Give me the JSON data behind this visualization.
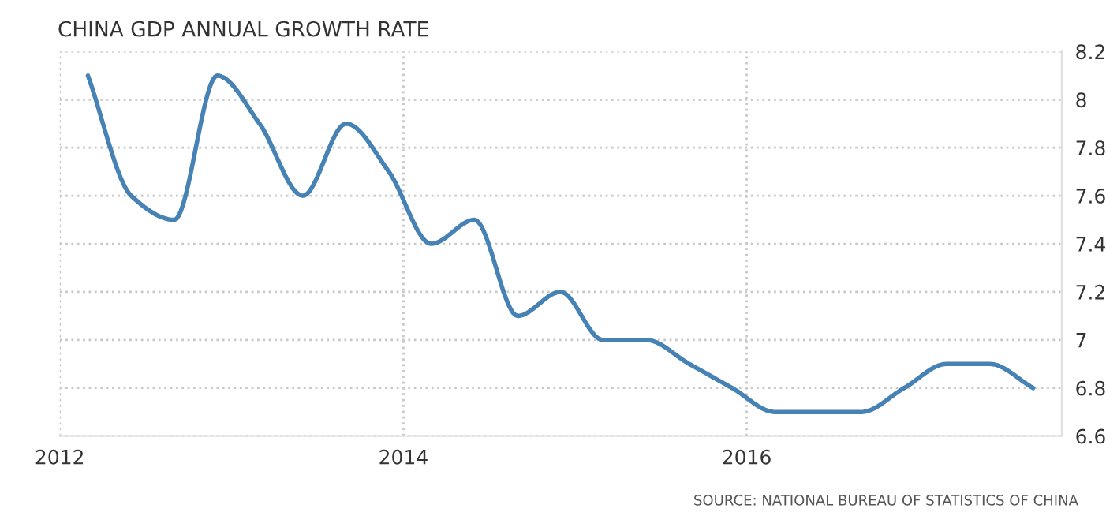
{
  "chart_data": {
    "type": "line",
    "title": "CHINA GDP ANNUAL GROWTH RATE",
    "x": [
      "2012-03",
      "2012-06",
      "2012-09",
      "2012-12",
      "2013-03",
      "2013-06",
      "2013-09",
      "2013-12",
      "2014-03",
      "2014-06",
      "2014-09",
      "2014-12",
      "2015-03",
      "2015-06",
      "2015-09",
      "2015-12",
      "2016-03",
      "2016-06",
      "2016-09",
      "2016-12",
      "2017-03",
      "2017-06",
      "2017-09"
    ],
    "series": [
      {
        "color": "#4682b4",
        "values": [
          8.1,
          7.6,
          7.5,
          8.1,
          7.9,
          7.6,
          7.9,
          7.7,
          7.4,
          7.5,
          7.1,
          7.2,
          7.0,
          7.0,
          6.9,
          6.8,
          6.7,
          6.7,
          6.7,
          6.8,
          6.9,
          6.9,
          6.8
        ]
      }
    ],
    "xlim": [
      "2012-01",
      "2017-11"
    ],
    "xticks": [
      {
        "value": "2012-01",
        "label": "2012"
      },
      {
        "value": "2014-01",
        "label": "2014"
      },
      {
        "value": "2016-01",
        "label": "2016"
      }
    ],
    "ylim": [
      6.6,
      8.2
    ],
    "yticks": [
      6.6,
      6.8,
      7,
      7.2,
      7.4,
      7.6,
      7.8,
      8,
      8.2
    ],
    "grid": true,
    "marker": "none",
    "line_style": "solid",
    "legend": false,
    "annotations": [
      "SOURCE: NATIONAL BUREAU OF STATISTICS OF CHINA"
    ]
  }
}
